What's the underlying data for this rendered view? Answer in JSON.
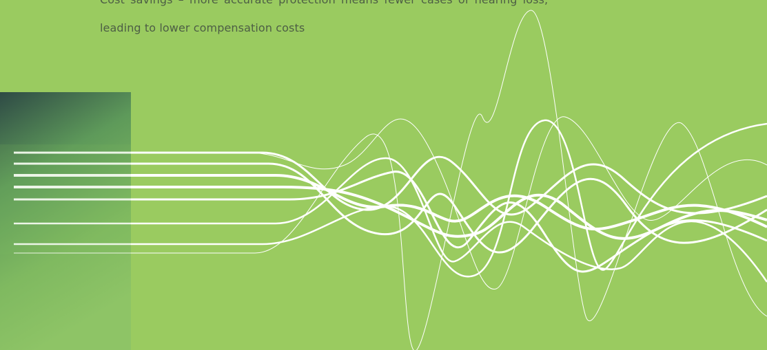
{
  "paragraph": {
    "lines": [
      "Cost savings – more accurate protection means fewer cases of hearing loss,",
      "leading to lower compensation costs"
    ]
  }
}
